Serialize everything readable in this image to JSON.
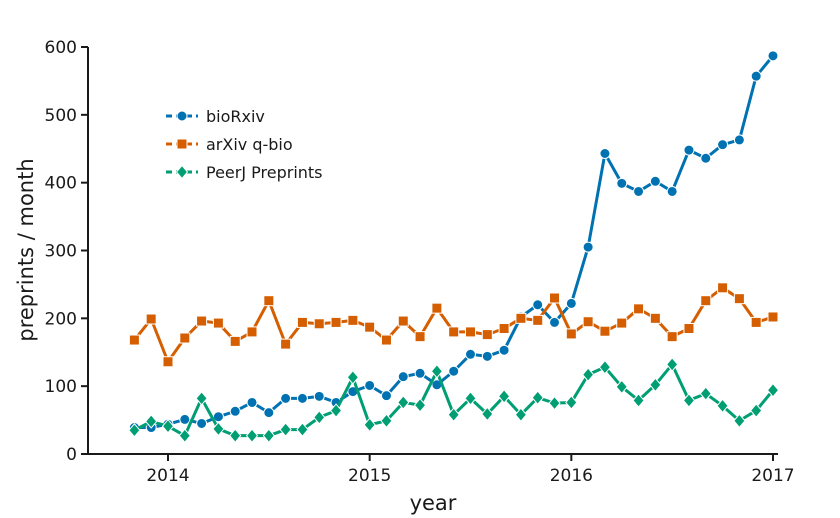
{
  "chart_data": {
    "type": "line",
    "title": "",
    "xlabel": "year",
    "ylabel": "preprints / month",
    "ylim": [
      0,
      600
    ],
    "xlim": [
      2013.7,
      2017.08
    ],
    "yticks": [
      0,
      100,
      200,
      300,
      400,
      500,
      600
    ],
    "ytick_labels": [
      "0",
      "100",
      "200",
      "300",
      "400",
      "500",
      "600"
    ],
    "xticks": [
      2014,
      2015,
      2016,
      2017
    ],
    "xtick_labels": [
      "2014",
      "2015",
      "2016",
      "2017"
    ],
    "grid": false,
    "legend_position": "top-left",
    "x_start": 2013.8333,
    "x_step_months": 1,
    "x_description": "monthly, Nov 2013 to Jan 2017",
    "series": [
      {
        "name": "bioRxiv",
        "color": "#0072B2",
        "marker": "circle",
        "values": [
          39,
          39,
          44,
          51,
          45,
          55,
          63,
          76,
          61,
          82,
          82,
          85,
          76,
          92,
          101,
          86,
          114,
          119,
          102,
          122,
          147,
          144,
          153,
          202,
          220,
          194,
          222,
          305,
          443,
          399,
          387,
          402,
          387,
          448,
          436,
          456,
          463,
          557,
          587
        ]
      },
      {
        "name": "arXiv q-bio",
        "color": "#D55E00",
        "marker": "square",
        "values": [
          168,
          199,
          136,
          171,
          196,
          193,
          166,
          180,
          226,
          162,
          194,
          192,
          194,
          197,
          187,
          168,
          196,
          173,
          215,
          180,
          180,
          176,
          185,
          200,
          197,
          230,
          177,
          195,
          181,
          193,
          214,
          200,
          173,
          185,
          226,
          245,
          229,
          194,
          202
        ]
      },
      {
        "name": "PeerJ Preprints",
        "color": "#009E73",
        "marker": "diamond",
        "values": [
          35,
          48,
          41,
          27,
          82,
          37,
          27,
          27,
          27,
          36,
          36,
          54,
          64,
          113,
          43,
          49,
          76,
          72,
          122,
          58,
          82,
          59,
          85,
          58,
          83,
          75,
          76,
          117,
          128,
          99,
          79,
          102,
          132,
          79,
          89,
          71,
          49,
          64,
          94
        ]
      }
    ]
  }
}
